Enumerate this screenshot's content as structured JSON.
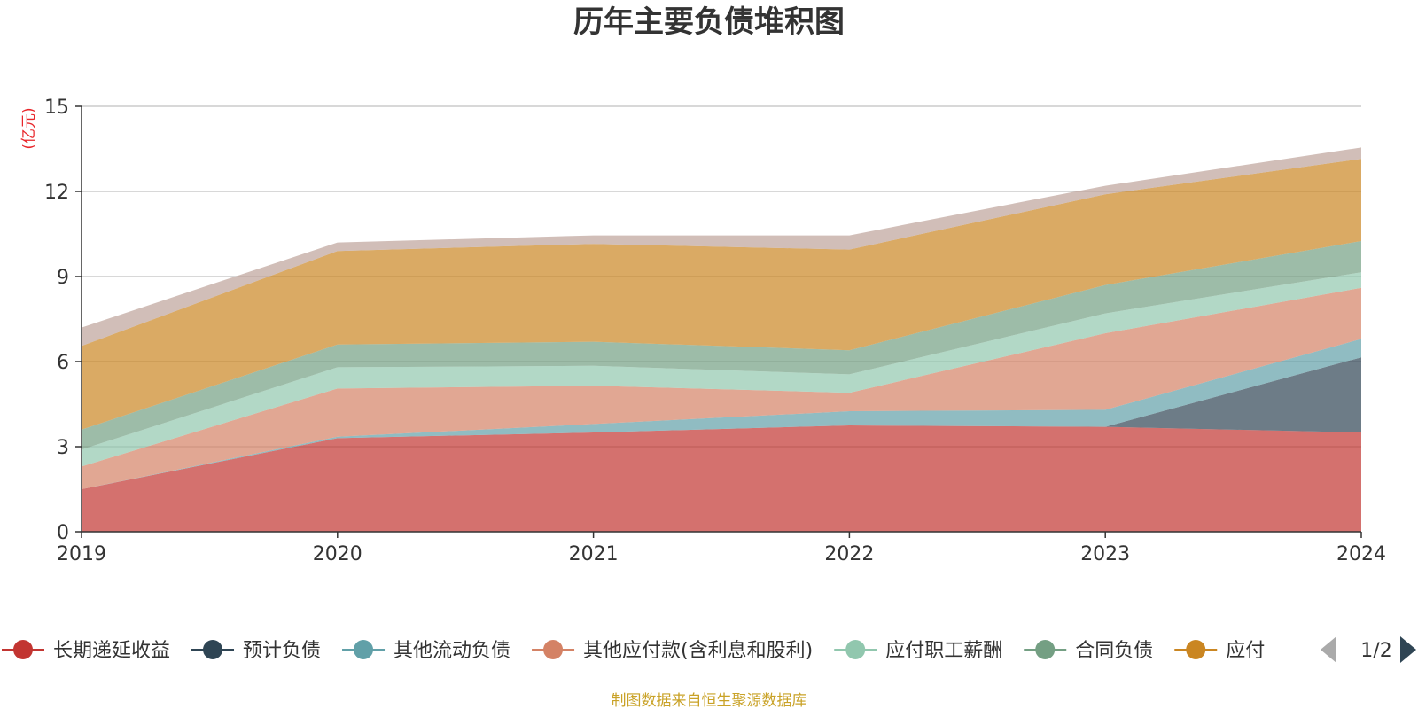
{
  "chart_data": {
    "type": "area",
    "stacked": true,
    "title": "历年主要负债堆积图",
    "unit_label": "(亿元)",
    "x": [
      "2019",
      "2020",
      "2021",
      "2022",
      "2023",
      "2024"
    ],
    "ylim": [
      0,
      15
    ],
    "yticks": [
      "0",
      "3",
      "6",
      "9",
      "12",
      "15"
    ],
    "grid": true,
    "legend_position": "bottom",
    "series": [
      {
        "name": "长期递延收益",
        "color": "#c23531",
        "values": [
          1.5,
          3.3,
          3.5,
          3.75,
          3.7,
          3.5
        ]
      },
      {
        "name": "预计负债",
        "color": "#2f4554",
        "values": [
          0,
          0,
          0,
          0,
          0,
          2.65
        ]
      },
      {
        "name": "其他流动负债",
        "color": "#61a0a8",
        "values": [
          0,
          0.05,
          0.3,
          0.5,
          0.6,
          0.65
        ]
      },
      {
        "name": "其他应付款(含利息和股利)",
        "color": "#d48265",
        "values": [
          0.8,
          1.7,
          1.35,
          0.65,
          2.7,
          1.8
        ]
      },
      {
        "name": "应付职工薪酬",
        "color": "#91c7ae",
        "values": [
          0.6,
          0.75,
          0.7,
          0.65,
          0.7,
          0.55
        ]
      },
      {
        "name": "合同负债",
        "color": "#749f83",
        "values": [
          0.7,
          0.8,
          0.85,
          0.85,
          1.0,
          1.1
        ]
      },
      {
        "name": "应付账款",
        "color": "#ca8622",
        "values": [
          2.95,
          3.3,
          3.45,
          3.55,
          3.2,
          2.9
        ]
      },
      {
        "name": "",
        "color": "#bda29a",
        "values": [
          0.65,
          0.3,
          0.3,
          0.5,
          0.3,
          0.4
        ]
      }
    ]
  },
  "legend": {
    "items": [
      "长期递延收益",
      "预计负债",
      "其他流动负债",
      "其他应付款(含利息和股利)",
      "应付职工薪酬",
      "合同负债",
      "应付"
    ],
    "page_label": "1/2"
  },
  "source": "制图数据来自恒生聚源数据库",
  "colors": {
    "axis": "#333333",
    "grid": "#cccccc",
    "pager_inactive": "#aaaaaa",
    "pager_active": "#2f4554"
  },
  "icons": {
    "prev": "triangle-left-icon",
    "next": "triangle-right-icon"
  }
}
